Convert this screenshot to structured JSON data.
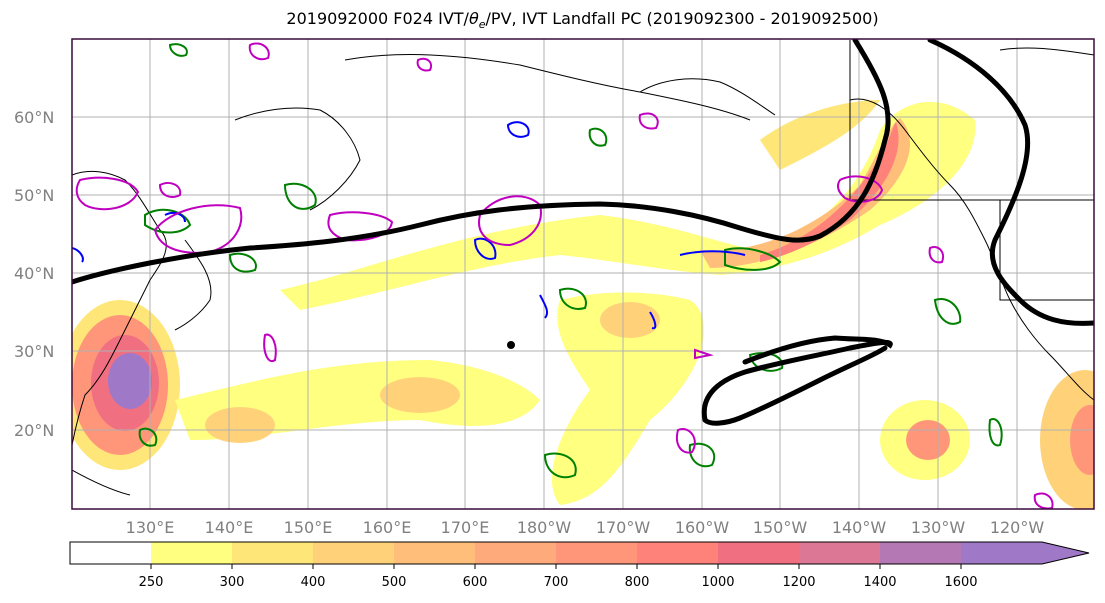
{
  "title_prefix": "2019092000 F024 IVT/",
  "title_theta": "θ",
  "title_e": "e",
  "title_suffix": "/PV, IVT Landfall PC (2019092300 - 2019092500)",
  "lat_labels": [
    "60°N",
    "50°N",
    "40°N",
    "30°N",
    "20°N"
  ],
  "lon_labels": [
    "130°E",
    "140°E",
    "150°E",
    "160°E",
    "170°E",
    "180°W",
    "170°W",
    "160°W",
    "150°W",
    "140°W",
    "130°W",
    "120°W"
  ],
  "colorbar": {
    "levels": [
      "250",
      "300",
      "400",
      "500",
      "600",
      "700",
      "800",
      "1000",
      "1200",
      "1400",
      "1600"
    ],
    "colors": [
      "#ffffff",
      "#ffff80",
      "#ffe678",
      "#ffd27a",
      "#ffbe7a",
      "#ffaa7a",
      "#ff967a",
      "#ff827a",
      "#f07082",
      "#dc7896",
      "#b478b4",
      "#a078c8"
    ]
  },
  "colors": {
    "ivt_high": "#ff827a",
    "ivt_core": "#a078c8",
    "pc_line": "#000000",
    "theta_e": "#008000",
    "pv_neg": "#0000ff",
    "pv_pos": "#c000c0"
  }
}
